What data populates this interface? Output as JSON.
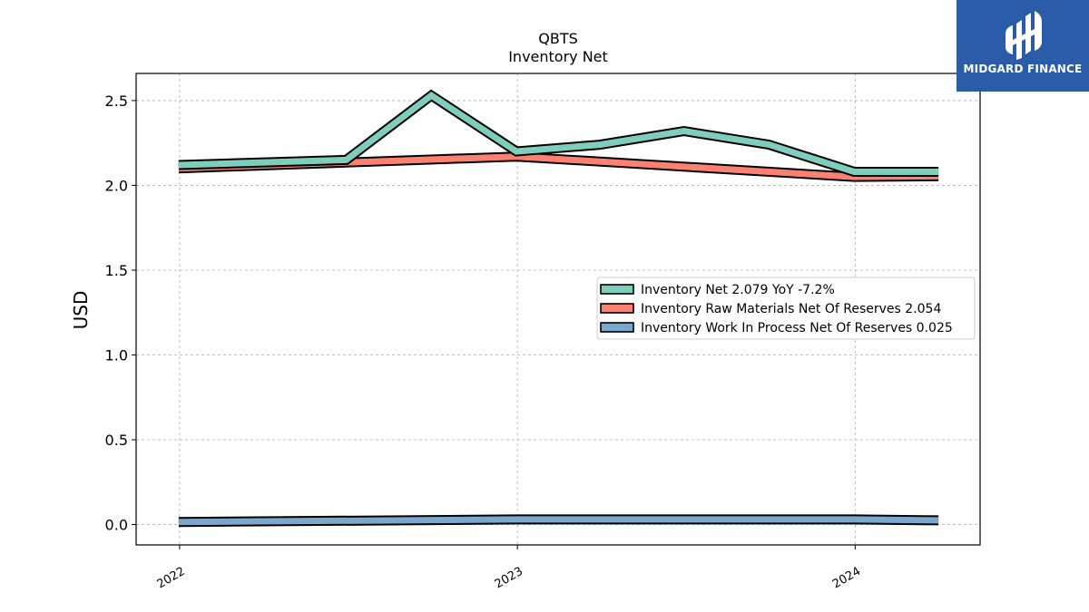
{
  "chart_data": {
    "type": "line",
    "title": "QBTS",
    "subtitle": "Inventory Net",
    "xlabel": "",
    "ylabel": "USD",
    "x_ticks": [
      "2022",
      "2023",
      "2024"
    ],
    "y_ticks": [
      "0.0",
      "0.5",
      "1.0",
      "1.5",
      "2.0",
      "2.5"
    ],
    "xlim": [
      "2021-11-15",
      "2024-05-15"
    ],
    "ylim": [
      -0.12,
      2.66
    ],
    "grid": true,
    "legend_position": "center-right",
    "series": [
      {
        "name": "Inventory Net",
        "legend_label": "Inventory Net  2.079 YoY -7.2%",
        "color": "#7fcdbb",
        "x": [
          "2021-12-31",
          "2022-06-30",
          "2022-09-30",
          "2022-12-31",
          "2023-03-31",
          "2023-06-30",
          "2023-09-30",
          "2023-12-31",
          "2024-03-31"
        ],
        "values": [
          2.12,
          2.15,
          2.53,
          2.2,
          2.24,
          2.32,
          2.24,
          2.08,
          2.08
        ]
      },
      {
        "name": "Inventory Raw Materials Net Of Reserves",
        "legend_label": "Inventory Raw Materials Net Of Reserves  2.054",
        "color": "#fa8072",
        "x": [
          "2021-12-31",
          "2022-12-31",
          "2023-12-31",
          "2024-03-31"
        ],
        "values": [
          2.1,
          2.17,
          2.05,
          2.054
        ]
      },
      {
        "name": "Inventory Work In Process Net Of Reserves",
        "legend_label": "Inventory Work In Process Net Of Reserves  0.025",
        "color": "#7ba7cc",
        "x": [
          "2021-12-31",
          "2022-12-31",
          "2023-12-31",
          "2024-03-31"
        ],
        "values": [
          0.015,
          0.03,
          0.03,
          0.025
        ]
      }
    ]
  },
  "logo": {
    "text": "MIDGARD FINANCE"
  }
}
